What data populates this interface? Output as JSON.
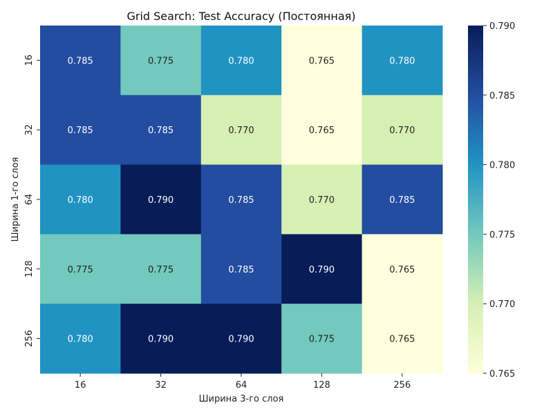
{
  "chart_data": {
    "type": "heatmap",
    "title": "Grid Search: Test Accuracy (Постоянная)",
    "xlabel": "Ширина 3-го слоя",
    "ylabel": "Ширина 1-го слоя",
    "x_categories": [
      "16",
      "32",
      "64",
      "128",
      "256"
    ],
    "y_categories": [
      "16",
      "32",
      "64",
      "128",
      "256"
    ],
    "values": [
      [
        0.785,
        0.775,
        0.78,
        0.765,
        0.78
      ],
      [
        0.785,
        0.785,
        0.77,
        0.765,
        0.77
      ],
      [
        0.78,
        0.79,
        0.785,
        0.77,
        0.785
      ],
      [
        0.775,
        0.775,
        0.785,
        0.79,
        0.765
      ],
      [
        0.78,
        0.79,
        0.79,
        0.775,
        0.765
      ]
    ],
    "value_labels": [
      [
        "0.785",
        "0.775",
        "0.780",
        "0.765",
        "0.780"
      ],
      [
        "0.785",
        "0.785",
        "0.770",
        "0.765",
        "0.770"
      ],
      [
        "0.780",
        "0.790",
        "0.785",
        "0.770",
        "0.785"
      ],
      [
        "0.775",
        "0.775",
        "0.785",
        "0.790",
        "0.765"
      ],
      [
        "0.780",
        "0.790",
        "0.790",
        "0.775",
        "0.765"
      ]
    ],
    "colormap": "YlGnBu",
    "vmin": 0.765,
    "vmax": 0.79,
    "colorbar_ticks": [
      "0.765",
      "0.770",
      "0.775",
      "0.780",
      "0.785",
      "0.790"
    ],
    "colors": {
      "0.765": "#ffffdd",
      "0.770": "#d6efb3",
      "0.775": "#73c9bd",
      "0.780": "#2193c2",
      "0.785": "#234da0",
      "0.790": "#081d58"
    }
  }
}
